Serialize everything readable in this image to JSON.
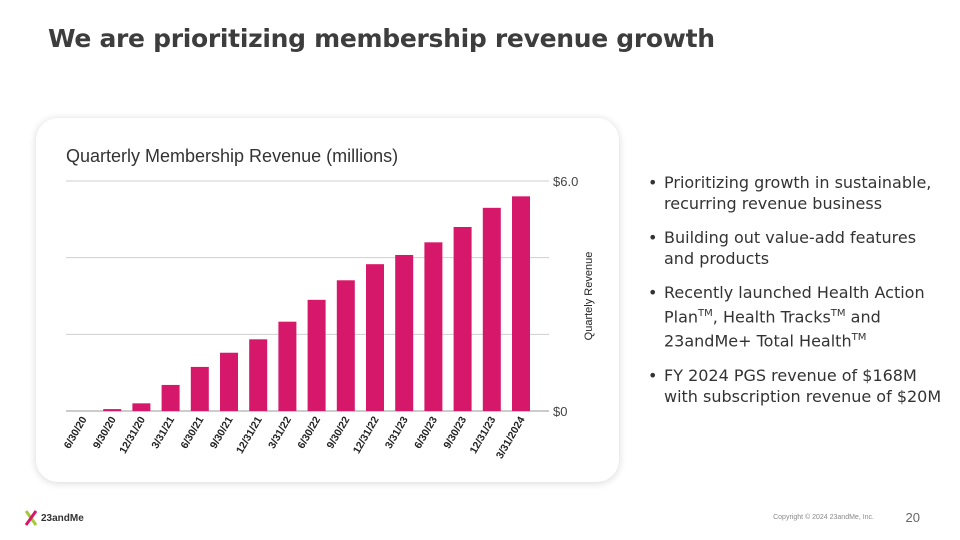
{
  "slide": {
    "title": "We are prioritizing membership revenue growth",
    "page_number": "20",
    "copyright": "Copyright © 2024 23andMe, Inc.",
    "logo_text": "23andMe"
  },
  "bullets": [
    {
      "parts": [
        {
          "text": "Prioritizing growth in sustainable, recurring revenue business"
        }
      ]
    },
    {
      "parts": [
        {
          "text": "Building out value-add features and products"
        }
      ]
    },
    {
      "parts": [
        {
          "text": "Recently launched Health Action Plan"
        },
        {
          "text": "TM",
          "sup": true
        },
        {
          "text": ", Health Tracks"
        },
        {
          "text": "TM",
          "sup": true
        },
        {
          "text": " and 23andMe+ Total Health"
        },
        {
          "text": "TM",
          "sup": true
        }
      ]
    },
    {
      "parts": [
        {
          "text": "FY 2024 PGS revenue of $168M with subscription revenue of $20M"
        }
      ]
    }
  ],
  "colors": {
    "bar": "#d6186a",
    "grid": "#cfcfcf",
    "title": "#3d3d3d"
  },
  "chart_data": {
    "type": "bar",
    "title": "Quarterly Membership Revenue (millions)",
    "ylabel": "Quartely Revenue",
    "xlabel": "",
    "categories": [
      "6/30/20",
      "9/30/20",
      "12/31/20",
      "3/31/21",
      "6/30/21",
      "9/30/21",
      "12/31/21",
      "3/31/22",
      "6/30/22",
      "9/30/22",
      "12/31/22",
      "3/31/23",
      "6/30/23",
      "9/30/23",
      "12/31/23",
      "3/31/2024"
    ],
    "values": [
      0.0,
      0.05,
      0.2,
      0.68,
      1.15,
      1.52,
      1.87,
      2.33,
      2.9,
      3.41,
      3.83,
      4.07,
      4.4,
      4.8,
      5.3,
      5.6
    ],
    "ylim": [
      0,
      6.0
    ],
    "ytick_labels": [
      "$0",
      "",
      "",
      "$6.0"
    ],
    "grid": true,
    "y_axis_side": "right"
  }
}
